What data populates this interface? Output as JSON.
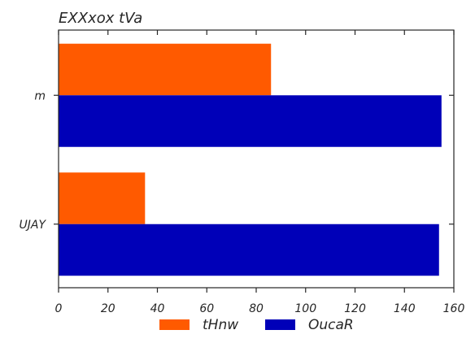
{
  "chart_data": {
    "type": "bar",
    "orientation": "horizontal",
    "title": "EXXxox tVa",
    "xlabel": "",
    "ylabel": "",
    "categories": [
      "m",
      "UJAY"
    ],
    "series": [
      {
        "name": "tHnw",
        "color": "#ff5a00",
        "values": [
          86,
          35
        ]
      },
      {
        "name": "OucaR",
        "color": "#0000b8",
        "values": [
          155,
          154
        ]
      }
    ],
    "xlim": [
      0,
      160
    ],
    "xticks": [
      0,
      20,
      40,
      60,
      80,
      100,
      120,
      140,
      160
    ],
    "grid": false,
    "legend_position": "bottom-center"
  }
}
